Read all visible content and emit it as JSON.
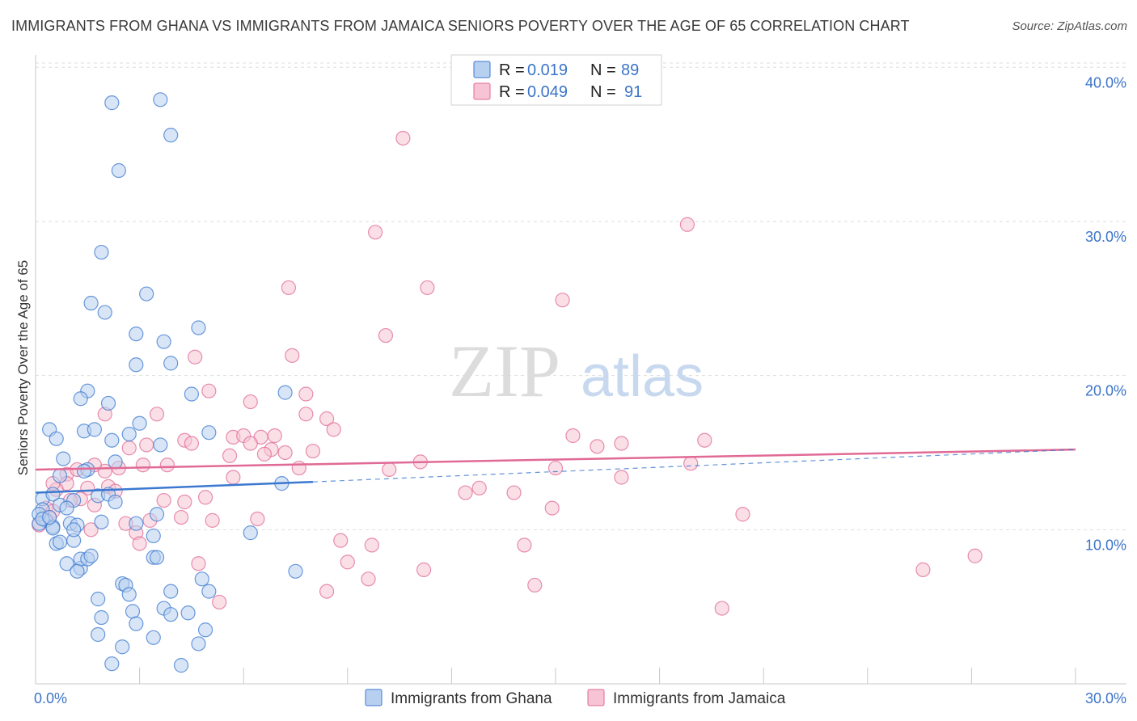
{
  "title": "IMMIGRANTS FROM GHANA VS IMMIGRANTS FROM JAMAICA SENIORS POVERTY OVER THE AGE OF 65 CORRELATION CHART",
  "source": "Source: ZipAtlas.com",
  "watermark": {
    "zip": "ZIP",
    "atlas": "atlas"
  },
  "colors": {
    "ghana": "#3b78d0",
    "ghana_fill": "#b8d0ef",
    "jamaica": "#e06a95",
    "jamaica_fill": "#f6c4d4",
    "tick_text": "#3b74c8"
  },
  "chart_data": {
    "type": "scatter",
    "title": "IMMIGRANTS FROM GHANA VS IMMIGRANTS FROM JAMAICA SENIORS POVERTY OVER THE AGE OF 65 CORRELATION CHART",
    "xlabel": "",
    "ylabel": "Seniors Poverty Over the Age of 65",
    "xlim": [
      0,
      30
    ],
    "ylim": [
      0,
      40.8
    ],
    "x_tick_labels": [
      {
        "value": 0,
        "label": "0.0%"
      },
      {
        "value": 30,
        "label": "30.0%"
      }
    ],
    "y_tick_labels": [
      {
        "value": 10,
        "label": "10.0%"
      },
      {
        "value": 20,
        "label": "20.0%"
      },
      {
        "value": 30,
        "label": "30.0%"
      },
      {
        "value": 40,
        "label": "40.0%"
      }
    ],
    "legend_stats": [
      {
        "r_label": "R =",
        "r_value": "0.019",
        "n_label": "N =",
        "n_value": "89"
      },
      {
        "r_label": "R =",
        "r_value": "0.049",
        "n_label": "N =",
        "n_value": "91"
      }
    ],
    "series": [
      {
        "name": "Immigrants from Ghana",
        "trend": {
          "x": [
            0,
            8
          ],
          "y": [
            12.4,
            13.1
          ],
          "dashed_to": [
            30,
            15.2
          ]
        },
        "points": [
          [
            2.2,
            37.7
          ],
          [
            3.6,
            37.9
          ],
          [
            3.9,
            35.6
          ],
          [
            2.4,
            33.3
          ],
          [
            1.9,
            28.0
          ],
          [
            3.2,
            25.3
          ],
          [
            1.6,
            24.7
          ],
          [
            2.0,
            24.1
          ],
          [
            2.9,
            22.7
          ],
          [
            3.7,
            22.2
          ],
          [
            4.7,
            23.1
          ],
          [
            2.9,
            20.7
          ],
          [
            3.9,
            20.8
          ],
          [
            1.5,
            19.0
          ],
          [
            1.3,
            18.5
          ],
          [
            2.1,
            18.2
          ],
          [
            4.5,
            18.8
          ],
          [
            7.2,
            18.9
          ],
          [
            0.4,
            16.5
          ],
          [
            1.4,
            16.4
          ],
          [
            1.7,
            16.5
          ],
          [
            2.7,
            16.2
          ],
          [
            3.0,
            16.9
          ],
          [
            0.6,
            15.9
          ],
          [
            2.2,
            15.8
          ],
          [
            3.6,
            15.5
          ],
          [
            5.0,
            16.3
          ],
          [
            0.8,
            14.6
          ],
          [
            1.5,
            13.9
          ],
          [
            2.3,
            14.4
          ],
          [
            0.7,
            13.5
          ],
          [
            1.4,
            13.8
          ],
          [
            0.2,
            12.0
          ],
          [
            0.5,
            12.3
          ],
          [
            0.7,
            11.6
          ],
          [
            1.1,
            11.9
          ],
          [
            1.8,
            12.2
          ],
          [
            2.1,
            12.3
          ],
          [
            2.3,
            11.8
          ],
          [
            0.2,
            11.3
          ],
          [
            0.3,
            10.6
          ],
          [
            0.5,
            10.2
          ],
          [
            0.9,
            11.4
          ],
          [
            1.0,
            10.4
          ],
          [
            1.2,
            10.3
          ],
          [
            1.9,
            10.5
          ],
          [
            2.9,
            10.4
          ],
          [
            3.5,
            11.0
          ],
          [
            0.5,
            10.1
          ],
          [
            0.6,
            9.1
          ],
          [
            0.7,
            9.2
          ],
          [
            1.1,
            9.3
          ],
          [
            1.1,
            10.0
          ],
          [
            3.4,
            9.6
          ],
          [
            6.2,
            9.8
          ],
          [
            0.1,
            11.0
          ],
          [
            0.1,
            10.4
          ],
          [
            0.2,
            10.7
          ],
          [
            0.4,
            10.8
          ],
          [
            0.9,
            7.8
          ],
          [
            1.3,
            7.5
          ],
          [
            1.3,
            8.1
          ],
          [
            1.5,
            8.1
          ],
          [
            1.6,
            8.3
          ],
          [
            3.4,
            8.2
          ],
          [
            3.5,
            8.2
          ],
          [
            1.2,
            7.3
          ],
          [
            7.5,
            7.3
          ],
          [
            2.5,
            6.5
          ],
          [
            2.6,
            6.4
          ],
          [
            3.9,
            6.0
          ],
          [
            4.8,
            6.8
          ],
          [
            5.0,
            6.0
          ],
          [
            1.8,
            5.5
          ],
          [
            2.7,
            5.8
          ],
          [
            3.7,
            4.9
          ],
          [
            2.8,
            4.7
          ],
          [
            3.9,
            4.5
          ],
          [
            4.4,
            4.6
          ],
          [
            1.9,
            4.3
          ],
          [
            2.9,
            3.9
          ],
          [
            4.9,
            3.5
          ],
          [
            3.4,
            3.0
          ],
          [
            1.8,
            3.2
          ],
          [
            2.5,
            2.4
          ],
          [
            4.7,
            2.6
          ],
          [
            2.2,
            1.3
          ],
          [
            4.2,
            1.2
          ],
          [
            7.1,
            13.0
          ]
        ]
      },
      {
        "name": "Immigrants from Jamaica",
        "trend": {
          "x": [
            0,
            30
          ],
          "y": [
            13.9,
            15.2
          ]
        },
        "points": [
          [
            10.6,
            35.4
          ],
          [
            9.8,
            29.3
          ],
          [
            18.8,
            29.8
          ],
          [
            7.3,
            25.7
          ],
          [
            11.3,
            25.7
          ],
          [
            15.2,
            24.9
          ],
          [
            10.1,
            22.6
          ],
          [
            4.6,
            21.2
          ],
          [
            7.4,
            21.3
          ],
          [
            5.0,
            19.0
          ],
          [
            6.2,
            18.3
          ],
          [
            7.8,
            18.8
          ],
          [
            3.5,
            17.5
          ],
          [
            2.0,
            17.5
          ],
          [
            7.8,
            17.5
          ],
          [
            8.4,
            17.2
          ],
          [
            5.7,
            16.0
          ],
          [
            6.0,
            16.1
          ],
          [
            6.5,
            16.0
          ],
          [
            6.9,
            16.1
          ],
          [
            8.6,
            16.5
          ],
          [
            15.5,
            16.1
          ],
          [
            19.3,
            15.8
          ],
          [
            16.2,
            15.4
          ],
          [
            16.9,
            15.6
          ],
          [
            4.3,
            15.8
          ],
          [
            4.5,
            15.6
          ],
          [
            3.2,
            15.5
          ],
          [
            2.7,
            15.3
          ],
          [
            6.2,
            15.6
          ],
          [
            6.8,
            15.2
          ],
          [
            7.2,
            15.0
          ],
          [
            8.0,
            15.1
          ],
          [
            5.6,
            14.8
          ],
          [
            6.6,
            14.9
          ],
          [
            3.1,
            14.2
          ],
          [
            3.8,
            14.2
          ],
          [
            7.6,
            14.0
          ],
          [
            10.2,
            13.9
          ],
          [
            11.1,
            14.4
          ],
          [
            15.0,
            14.0
          ],
          [
            18.9,
            14.3
          ],
          [
            0.9,
            13.6
          ],
          [
            1.2,
            13.9
          ],
          [
            2.0,
            13.8
          ],
          [
            5.7,
            13.4
          ],
          [
            0.9,
            13.0
          ],
          [
            1.5,
            12.7
          ],
          [
            2.1,
            12.8
          ],
          [
            2.3,
            12.5
          ],
          [
            1.3,
            12.0
          ],
          [
            0.6,
            12.6
          ],
          [
            0.3,
            11.4
          ],
          [
            0.5,
            11.2
          ],
          [
            1.7,
            11.6
          ],
          [
            3.7,
            11.9
          ],
          [
            4.3,
            11.8
          ],
          [
            4.9,
            12.1
          ],
          [
            12.4,
            12.4
          ],
          [
            12.8,
            12.7
          ],
          [
            13.8,
            12.4
          ],
          [
            16.9,
            13.4
          ],
          [
            0.4,
            10.8
          ],
          [
            0.1,
            10.3
          ],
          [
            2.6,
            10.4
          ],
          [
            3.3,
            10.6
          ],
          [
            4.2,
            10.8
          ],
          [
            5.1,
            10.6
          ],
          [
            6.4,
            10.7
          ],
          [
            14.9,
            11.4
          ],
          [
            20.4,
            11.0
          ],
          [
            2.9,
            9.8
          ],
          [
            3.0,
            9.1
          ],
          [
            8.8,
            9.3
          ],
          [
            9.7,
            9.0
          ],
          [
            14.1,
            9.0
          ],
          [
            4.7,
            7.8
          ],
          [
            9.0,
            7.9
          ],
          [
            11.2,
            7.4
          ],
          [
            25.6,
            7.4
          ],
          [
            27.1,
            8.3
          ],
          [
            9.6,
            6.8
          ],
          [
            8.4,
            6.0
          ],
          [
            14.4,
            6.4
          ],
          [
            5.3,
            5.3
          ],
          [
            19.8,
            4.9
          ],
          [
            1.7,
            14.2
          ],
          [
            0.5,
            13.0
          ],
          [
            1.6,
            10.0
          ],
          [
            2.4,
            14.0
          ],
          [
            1.0,
            11.9
          ]
        ]
      }
    ]
  },
  "legend": {
    "ghana": {
      "label": "Immigrants from Ghana"
    },
    "jamaica": {
      "label": "Immigrants from Jamaica"
    }
  }
}
